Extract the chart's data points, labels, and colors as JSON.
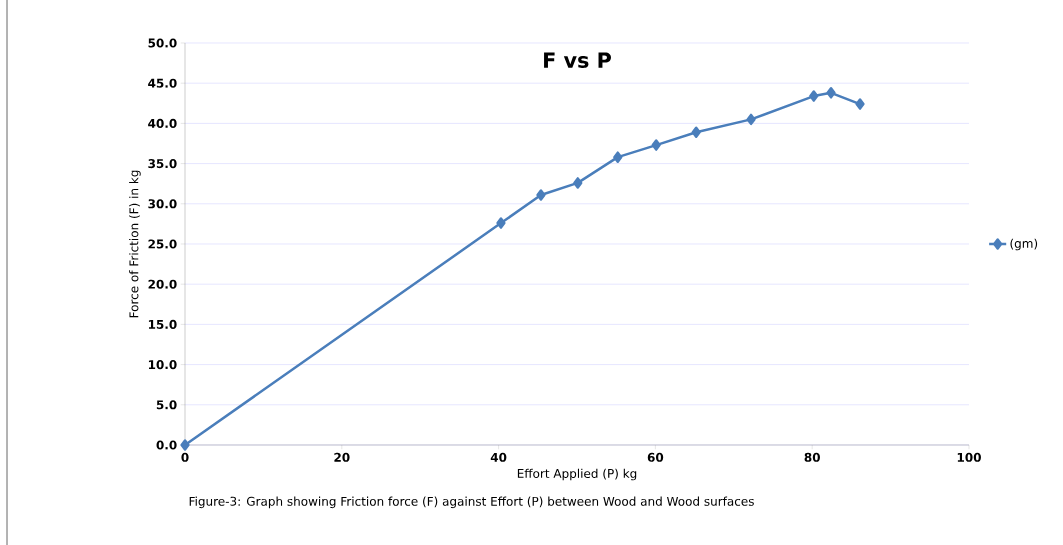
{
  "chart_data": {
    "type": "line",
    "title": "F vs P",
    "xlabel": "Effort Applied (P) kg",
    "ylabel": "Force of Friction (F) in kg",
    "annotations": [
      "Figure-3: Graph showing Friction force (F) against Effort (P) between Wood and Wood surfaces"
    ],
    "series": [
      {
        "name": "(gm)",
        "color": "#4a7ebb",
        "x": [
          0,
          40.3,
          45.4,
          50.1,
          55.2,
          60.1,
          65.2,
          72.2,
          80.2,
          82.4,
          86.1
        ],
        "values": [
          0,
          27.6,
          31.1,
          32.6,
          35.8,
          37.3,
          38.9,
          40.5,
          43.4,
          43.8,
          42.4
        ]
      }
    ],
    "xlim": [
      0,
      100
    ],
    "xticks": [
      0,
      20,
      40,
      60,
      80,
      100
    ],
    "ylim": [
      0,
      50
    ],
    "yticks": [
      {
        "value": 0,
        "label": "0.0"
      },
      {
        "value": 5,
        "label": "5.0"
      },
      {
        "value": 10,
        "label": "10.0"
      },
      {
        "value": 15,
        "label": "15.0"
      },
      {
        "value": 20,
        "label": "20.0"
      },
      {
        "value": 25,
        "label": "25.0"
      },
      {
        "value": 30,
        "label": "30.0"
      },
      {
        "value": 35,
        "label": "35.0"
      },
      {
        "value": 40,
        "label": "40.0"
      },
      {
        "value": 45,
        "label": "45.0"
      },
      {
        "value": 50,
        "label": "50.0"
      }
    ],
    "grid": "y",
    "legend": "right",
    "marker": "diamond",
    "line_style": "solid"
  }
}
